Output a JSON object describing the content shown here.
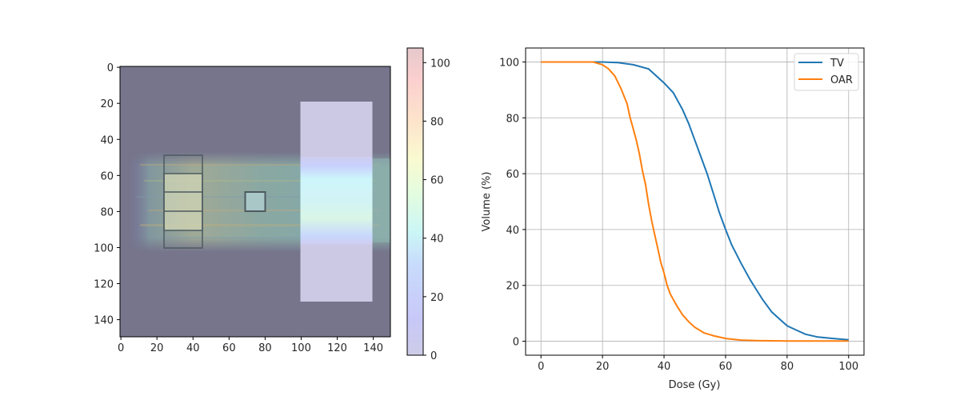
{
  "chart_data": [
    {
      "type": "heatmap",
      "title": "",
      "xlabel": "",
      "ylabel": "",
      "xlim": [
        -0.5,
        149.5
      ],
      "ylim": [
        149.5,
        -0.5
      ],
      "x_ticks": [
        0,
        20,
        40,
        60,
        80,
        100,
        120,
        140
      ],
      "y_ticks": [
        0,
        20,
        40,
        60,
        80,
        100,
        120,
        140
      ],
      "background_color": "#76758c",
      "description": "Dose distribution overlay (beam entering from left, rows ~50-100) with structure contours",
      "dose_band": {
        "x_range": [
          5,
          150
        ],
        "y_range": [
          48,
          100
        ],
        "peak_y_range": [
          55,
          95
        ]
      },
      "structures": [
        {
          "name": "outer-box",
          "x": [
            24,
            45
          ],
          "y": [
            49,
            100
          ],
          "kind": "outline"
        },
        {
          "name": "inner-box",
          "x": [
            24,
            45
          ],
          "y": [
            59,
            90
          ],
          "kind": "outline-filled"
        },
        {
          "name": "mid-line-1",
          "y": 69
        },
        {
          "name": "mid-line-2",
          "y": 80
        },
        {
          "name": "small-box",
          "x": [
            69,
            80
          ],
          "y": [
            69,
            80
          ],
          "kind": "outline-filled"
        },
        {
          "name": "bright-rect",
          "x": [
            100,
            140
          ],
          "y": [
            19,
            130
          ],
          "kind": "filled"
        }
      ],
      "colorbar": {
        "min": 0,
        "max": 105,
        "ticks": [
          0,
          20,
          40,
          60,
          80,
          100
        ],
        "colormap": "jet (alpha-blended)"
      }
    },
    {
      "type": "line",
      "title": "",
      "xlabel": "Dose (Gy)",
      "ylabel": "Volume (%)",
      "xlim": [
        -5,
        105
      ],
      "ylim": [
        -5,
        105
      ],
      "x_ticks": [
        0,
        20,
        40,
        60,
        80,
        100
      ],
      "y_ticks": [
        0,
        20,
        40,
        60,
        80,
        100
      ],
      "grid": true,
      "legend_position": "upper right",
      "series": [
        {
          "name": "TV",
          "color": "#1f77b4",
          "x": [
            0,
            10,
            20,
            25,
            30,
            35,
            40,
            43,
            46,
            48,
            50,
            52,
            54,
            56,
            58,
            60,
            62,
            65,
            68,
            70,
            72,
            75,
            78,
            80,
            83,
            86,
            90,
            95,
            100
          ],
          "y": [
            100,
            100,
            100,
            99.8,
            99,
            97.5,
            92.5,
            89,
            83,
            78,
            72,
            66,
            60,
            53,
            46,
            40,
            34.5,
            28,
            22,
            18.5,
            15,
            10.5,
            7.5,
            5.5,
            4,
            2.5,
            1.5,
            1,
            0.5
          ]
        },
        {
          "name": "OAR",
          "color": "#ff7f0e",
          "x": [
            0,
            10,
            17,
            20,
            22,
            24,
            26,
            28,
            29,
            30,
            31,
            32,
            33,
            34,
            35,
            36,
            37,
            38,
            39,
            40,
            41,
            42,
            44,
            46,
            48,
            50,
            53,
            56,
            60,
            65,
            70,
            80,
            100
          ],
          "y": [
            100,
            100,
            100,
            99,
            97.5,
            95,
            90.5,
            85,
            80,
            76,
            72,
            67,
            61,
            56,
            49,
            43,
            38,
            33,
            28,
            24.5,
            20,
            17,
            13,
            9.5,
            7,
            5,
            3,
            2,
            1,
            0.4,
            0.2,
            0.1,
            0.1
          ]
        }
      ]
    }
  ],
  "legend": {
    "items": [
      {
        "label": "TV",
        "color": "#1f77b4"
      },
      {
        "label": "OAR",
        "color": "#ff7f0e"
      }
    ]
  },
  "axes_labels": {
    "right_x": "Dose (Gy)",
    "right_y": "Volume (%)"
  }
}
